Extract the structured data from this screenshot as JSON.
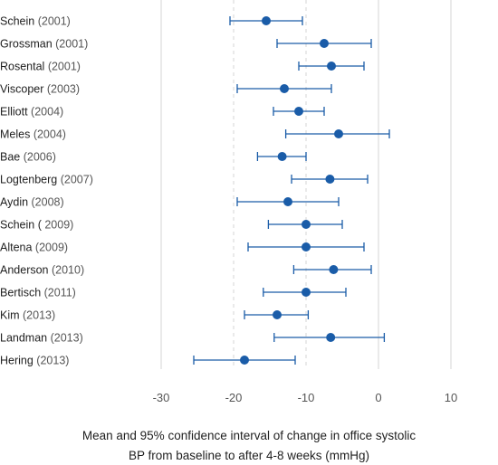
{
  "chart_data": {
    "type": "scatter",
    "subtype": "forest-plot",
    "xlabel_lines": [
      "Mean and 95% confidence interval of change in office systolic",
      "BP from baseline to after 4-8 weeks (mmHg)"
    ],
    "xlim": [
      -30,
      10
    ],
    "xticks": [
      -30,
      -20,
      -10,
      0,
      10
    ],
    "xtick_labels": [
      "-30",
      "-20",
      "-10",
      "0",
      "10"
    ],
    "grid": "vertical solid at -30, 0, 10; vertical dashed at -20, -10",
    "point_color": "#1a5ca8",
    "grid_color": "#d4d4d4",
    "studies": [
      {
        "name": "Schein",
        "year": "(2001)",
        "mean": -15.5,
        "lower": -20.5,
        "upper": -10.5
      },
      {
        "name": "Grossman",
        "year": "(2001)",
        "mean": -7.5,
        "lower": -14.0,
        "upper": -1.0
      },
      {
        "name": "Rosental",
        "year": "(2001)",
        "mean": -6.5,
        "lower": -11.0,
        "upper": -2.0
      },
      {
        "name": "Viscoper",
        "year": "(2003)",
        "mean": -13.0,
        "lower": -19.5,
        "upper": -6.5
      },
      {
        "name": "Elliott",
        "year": "(2004)",
        "mean": -11.0,
        "lower": -14.5,
        "upper": -7.5
      },
      {
        "name": "Meles",
        "year": "(2004)",
        "mean": -5.5,
        "lower": -12.8,
        "upper": 1.5
      },
      {
        "name": "Bae",
        "year": "(2006)",
        "mean": -13.3,
        "lower": -16.7,
        "upper": -10.0
      },
      {
        "name": "Logtenberg",
        "year": "(2007)",
        "mean": -6.7,
        "lower": -12.0,
        "upper": -1.5
      },
      {
        "name": "Aydin",
        "year": "(2008)",
        "mean": -12.5,
        "lower": -19.5,
        "upper": -5.5
      },
      {
        "name": "Schein (",
        "year": "2009)",
        "mean": -10.0,
        "lower": -15.2,
        "upper": -5.0
      },
      {
        "name": "Altena",
        "year": "(2009)",
        "mean": -10.0,
        "lower": -18.0,
        "upper": -2.0
      },
      {
        "name": "Anderson",
        "year": "(2010)",
        "mean": -6.2,
        "lower": -11.7,
        "upper": -1.0
      },
      {
        "name": "Bertisch",
        "year": "(2011)",
        "mean": -10.0,
        "lower": -15.9,
        "upper": -4.5
      },
      {
        "name": "Kim",
        "year": "(2013)",
        "mean": -14.0,
        "lower": -18.5,
        "upper": -9.7
      },
      {
        "name": "Landman",
        "year": "(2013)",
        "mean": -6.6,
        "lower": -14.4,
        "upper": 0.8
      },
      {
        "name": "Hering",
        "year": "(2013)",
        "mean": -18.5,
        "lower": -25.5,
        "upper": -11.5
      }
    ]
  }
}
